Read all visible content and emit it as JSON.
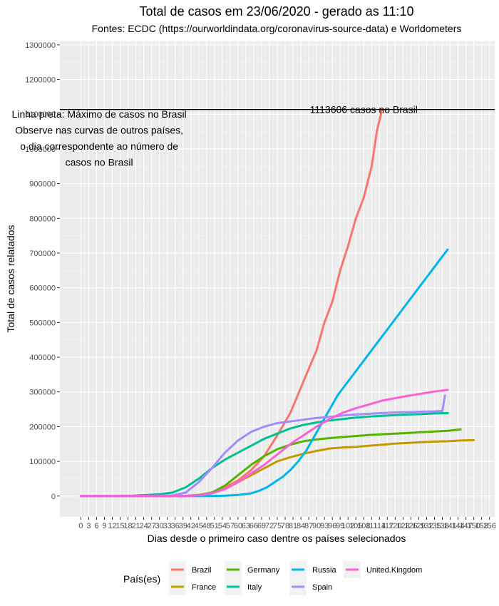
{
  "chart_data": {
    "type": "line",
    "title": "Total de casos em 23/06/2020 - gerado as 11:10",
    "subtitle": "Fontes: ECDC (https://ourworldindata.org/coronavirus-source-data) e Worldometers",
    "xlabel": "Dias desde o primeiro caso dentre os países selecionados",
    "ylabel": "Total de casos relatados",
    "xlim": [
      -8,
      158
    ],
    "ylim": [
      -60000,
      1310000
    ],
    "x_ticks": [
      0,
      3,
      6,
      9,
      12,
      15,
      18,
      21,
      24,
      27,
      30,
      33,
      36,
      39,
      42,
      45,
      48,
      51,
      54,
      57,
      60,
      63,
      66,
      69,
      72,
      75,
      78,
      81,
      84,
      87,
      90,
      93,
      96,
      99,
      102,
      105,
      108,
      111,
      114,
      117,
      120,
      123,
      126,
      129,
      132,
      135,
      138,
      141,
      144,
      147,
      150,
      153,
      156
    ],
    "y_ticks": [
      0,
      100000,
      200000,
      300000,
      400000,
      500000,
      600000,
      700000,
      800000,
      900000,
      1000000,
      1100000,
      1200000,
      1300000
    ],
    "grid": true,
    "legend_title": "País(es)",
    "legend_position": "bottom",
    "hline": {
      "y": 1113606,
      "label": "1113606 casos no Brasil"
    },
    "annotation_lines": [
      "Linha preta: Máximo de casos no Brasil",
      "Observe nas curvas de outros países,",
      "o dia correspondente ao número de",
      "casos no Brasil"
    ],
    "series": [
      {
        "name": "Brazil",
        "color": "#F8766D",
        "points": [
          [
            0,
            0
          ],
          [
            30,
            0
          ],
          [
            40,
            1000
          ],
          [
            45,
            3000
          ],
          [
            50,
            10000
          ],
          [
            55,
            25000
          ],
          [
            60,
            45000
          ],
          [
            65,
            75000
          ],
          [
            70,
            115000
          ],
          [
            75,
            175000
          ],
          [
            80,
            240000
          ],
          [
            85,
            330000
          ],
          [
            90,
            420000
          ],
          [
            93,
            500000
          ],
          [
            96,
            560000
          ],
          [
            99,
            650000
          ],
          [
            102,
            720000
          ],
          [
            105,
            800000
          ],
          [
            108,
            860000
          ],
          [
            111,
            950000
          ],
          [
            113,
            1050000
          ],
          [
            115,
            1113606
          ]
        ]
      },
      {
        "name": "France",
        "color": "#C49A00",
        "points": [
          [
            0,
            0
          ],
          [
            40,
            0
          ],
          [
            48,
            3000
          ],
          [
            55,
            20000
          ],
          [
            60,
            40000
          ],
          [
            65,
            60000
          ],
          [
            70,
            80000
          ],
          [
            75,
            100000
          ],
          [
            80,
            112000
          ],
          [
            85,
            122000
          ],
          [
            90,
            130000
          ],
          [
            95,
            137000
          ],
          [
            100,
            140000
          ],
          [
            105,
            142000
          ],
          [
            110,
            145000
          ],
          [
            115,
            148000
          ],
          [
            120,
            151000
          ],
          [
            125,
            153000
          ],
          [
            130,
            155000
          ],
          [
            135,
            157000
          ],
          [
            140,
            158000
          ],
          [
            145,
            160000
          ],
          [
            150,
            161000
          ]
        ]
      },
      {
        "name": "Germany",
        "color": "#53B400",
        "points": [
          [
            0,
            0
          ],
          [
            40,
            0
          ],
          [
            45,
            3000
          ],
          [
            50,
            10000
          ],
          [
            55,
            30000
          ],
          [
            60,
            60000
          ],
          [
            65,
            90000
          ],
          [
            70,
            115000
          ],
          [
            75,
            135000
          ],
          [
            80,
            148000
          ],
          [
            85,
            158000
          ],
          [
            90,
            163000
          ],
          [
            95,
            167000
          ],
          [
            100,
            170000
          ],
          [
            105,
            173000
          ],
          [
            110,
            176000
          ],
          [
            115,
            178000
          ],
          [
            120,
            180000
          ],
          [
            125,
            182000
          ],
          [
            130,
            184000
          ],
          [
            135,
            186000
          ],
          [
            140,
            188000
          ],
          [
            145,
            192000
          ]
        ]
      },
      {
        "name": "Italy",
        "color": "#00C094",
        "points": [
          [
            0,
            0
          ],
          [
            20,
            1000
          ],
          [
            30,
            5000
          ],
          [
            35,
            10000
          ],
          [
            40,
            25000
          ],
          [
            45,
            50000
          ],
          [
            50,
            80000
          ],
          [
            55,
            105000
          ],
          [
            60,
            125000
          ],
          [
            65,
            145000
          ],
          [
            70,
            165000
          ],
          [
            75,
            180000
          ],
          [
            80,
            195000
          ],
          [
            85,
            205000
          ],
          [
            90,
            212000
          ],
          [
            95,
            218000
          ],
          [
            100,
            222000
          ],
          [
            105,
            226000
          ],
          [
            110,
            229000
          ],
          [
            115,
            231000
          ],
          [
            120,
            233000
          ],
          [
            125,
            235000
          ],
          [
            130,
            236000
          ],
          [
            135,
            238000
          ],
          [
            140,
            239000
          ]
        ]
      },
      {
        "name": "Russia",
        "color": "#00B6EB",
        "points": [
          [
            0,
            0
          ],
          [
            50,
            0
          ],
          [
            55,
            1000
          ],
          [
            60,
            3000
          ],
          [
            65,
            8000
          ],
          [
            68,
            15000
          ],
          [
            71,
            25000
          ],
          [
            74,
            40000
          ],
          [
            77,
            55000
          ],
          [
            80,
            75000
          ],
          [
            83,
            100000
          ],
          [
            86,
            130000
          ],
          [
            89,
            170000
          ],
          [
            92,
            210000
          ],
          [
            95,
            250000
          ],
          [
            98,
            290000
          ],
          [
            101,
            320000
          ],
          [
            104,
            350000
          ],
          [
            107,
            380000
          ],
          [
            110,
            410000
          ],
          [
            113,
            440000
          ],
          [
            116,
            470000
          ],
          [
            119,
            500000
          ],
          [
            122,
            530000
          ],
          [
            125,
            560000
          ],
          [
            128,
            590000
          ],
          [
            131,
            620000
          ],
          [
            134,
            650000
          ],
          [
            137,
            680000
          ],
          [
            140,
            710000
          ]
        ]
      },
      {
        "name": "Spain",
        "color": "#A58AFF",
        "points": [
          [
            0,
            0
          ],
          [
            30,
            0
          ],
          [
            35,
            2000
          ],
          [
            40,
            10000
          ],
          [
            45,
            40000
          ],
          [
            50,
            80000
          ],
          [
            55,
            125000
          ],
          [
            60,
            160000
          ],
          [
            65,
            185000
          ],
          [
            70,
            200000
          ],
          [
            75,
            210000
          ],
          [
            80,
            215000
          ],
          [
            85,
            220000
          ],
          [
            90,
            225000
          ],
          [
            95,
            228000
          ],
          [
            100,
            232000
          ],
          [
            105,
            235000
          ],
          [
            110,
            237000
          ],
          [
            115,
            239000
          ],
          [
            120,
            241000
          ],
          [
            125,
            242000
          ],
          [
            130,
            243000
          ],
          [
            135,
            244000
          ],
          [
            138,
            245000
          ],
          [
            139,
            290000
          ]
        ]
      },
      {
        "name": "United.Kingdom",
        "color": "#FB61D7",
        "points": [
          [
            0,
            0
          ],
          [
            40,
            0
          ],
          [
            45,
            2000
          ],
          [
            50,
            8000
          ],
          [
            55,
            20000
          ],
          [
            60,
            40000
          ],
          [
            65,
            65000
          ],
          [
            70,
            90000
          ],
          [
            75,
            120000
          ],
          [
            80,
            150000
          ],
          [
            85,
            175000
          ],
          [
            90,
            200000
          ],
          [
            95,
            222000
          ],
          [
            100,
            240000
          ],
          [
            105,
            253000
          ],
          [
            110,
            264000
          ],
          [
            115,
            275000
          ],
          [
            120,
            282000
          ],
          [
            125,
            289000
          ],
          [
            130,
            295000
          ],
          [
            135,
            301000
          ],
          [
            140,
            306000
          ]
        ]
      }
    ]
  }
}
